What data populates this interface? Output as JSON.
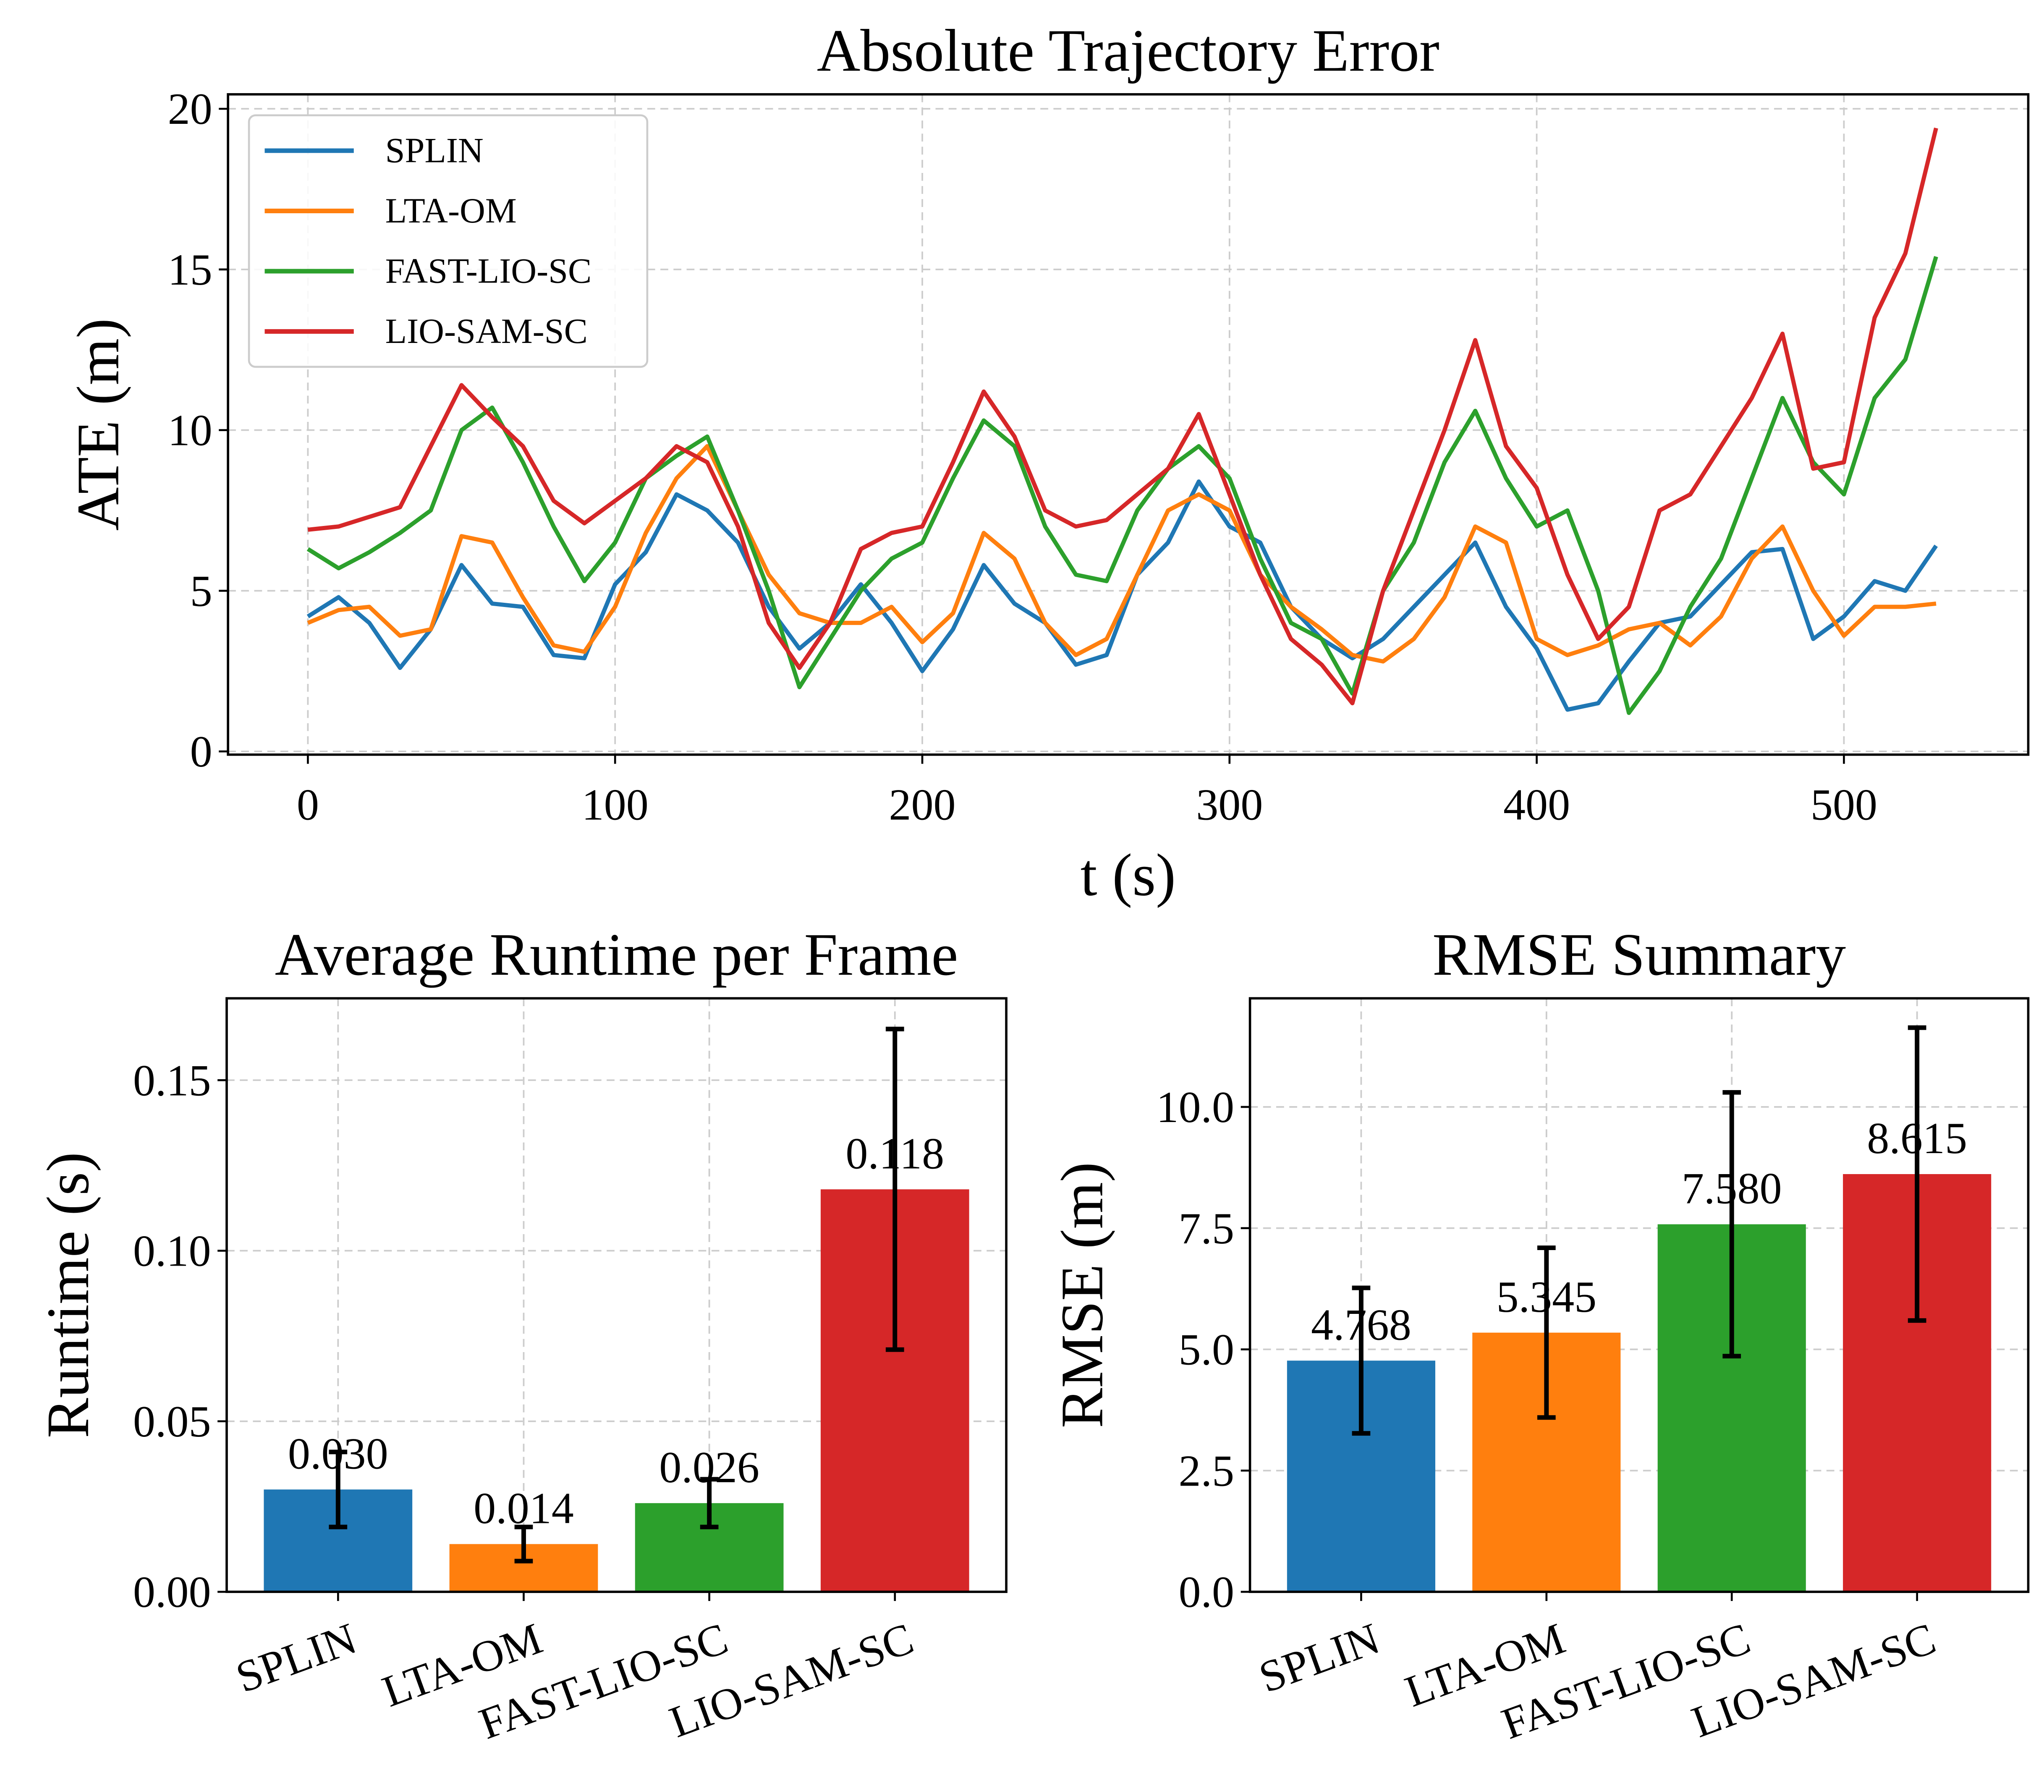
{
  "chart_data": [
    {
      "type": "line",
      "title": "Absolute Trajectory Error",
      "xlabel": "t (s)",
      "ylabel": "ATE (m)",
      "x": [
        0,
        10,
        20,
        30,
        40,
        50,
        60,
        70,
        80,
        90,
        100,
        110,
        120,
        130,
        140,
        150,
        160,
        170,
        180,
        190,
        200,
        210,
        220,
        230,
        240,
        250,
        260,
        270,
        280,
        290,
        300,
        310,
        320,
        330,
        340,
        350,
        360,
        370,
        380,
        390,
        400,
        410,
        420,
        430,
        440,
        450,
        460,
        470,
        480,
        490,
        500,
        510,
        520,
        530
      ],
      "series": [
        {
          "name": "SPLIN",
          "color": "#1f77b4",
          "values": [
            4.2,
            4.8,
            4.0,
            2.6,
            3.8,
            5.8,
            4.6,
            4.5,
            3.0,
            2.9,
            5.2,
            6.2,
            8.0,
            7.5,
            6.5,
            4.5,
            3.2,
            4.0,
            5.2,
            4.0,
            2.5,
            3.8,
            5.8,
            4.6,
            4.0,
            2.7,
            3.0,
            5.5,
            6.5,
            8.4,
            7.0,
            6.5,
            4.5,
            3.5,
            2.9,
            3.5,
            4.5,
            5.5,
            6.5,
            4.5,
            3.2,
            1.3,
            1.5,
            2.8,
            4.0,
            4.2,
            5.2,
            6.2,
            6.3,
            3.5,
            4.2,
            5.3,
            5.0,
            6.4
          ]
        },
        {
          "name": "LTA-OM",
          "color": "#ff7f0e",
          "values": [
            4.0,
            4.4,
            4.5,
            3.6,
            3.8,
            6.7,
            6.5,
            4.8,
            3.3,
            3.1,
            4.5,
            6.8,
            8.5,
            9.5,
            7.5,
            5.5,
            4.3,
            4.0,
            4.0,
            4.5,
            3.4,
            4.3,
            6.8,
            6.0,
            4.0,
            3.0,
            3.5,
            5.5,
            7.5,
            8.0,
            7.5,
            5.5,
            4.5,
            3.8,
            3.0,
            2.8,
            3.5,
            4.8,
            7.0,
            6.5,
            3.5,
            3.0,
            3.3,
            3.8,
            4.0,
            3.3,
            4.2,
            6.0,
            7.0,
            5.0,
            3.6,
            4.5,
            4.5,
            4.6
          ]
        },
        {
          "name": "FAST-LIO-SC",
          "color": "#2ca02c",
          "values": [
            6.3,
            5.7,
            6.2,
            6.8,
            7.5,
            10.0,
            10.7,
            9.0,
            7.0,
            5.3,
            6.5,
            8.5,
            9.2,
            9.8,
            7.5,
            5.0,
            2.0,
            3.5,
            5.0,
            6.0,
            6.5,
            8.5,
            10.3,
            9.5,
            7.0,
            5.5,
            5.3,
            7.5,
            8.8,
            9.5,
            8.5,
            6.0,
            4.0,
            3.5,
            1.8,
            5.0,
            6.5,
            9.0,
            10.6,
            8.5,
            7.0,
            7.5,
            5.0,
            1.2,
            2.5,
            4.5,
            6.0,
            8.5,
            11.0,
            9.0,
            8.0,
            11.0,
            12.2,
            15.4
          ]
        },
        {
          "name": "LIO-SAM-SC",
          "color": "#d62728",
          "values": [
            6.9,
            7.0,
            7.3,
            7.6,
            9.5,
            11.4,
            10.4,
            9.5,
            7.8,
            7.1,
            7.8,
            8.5,
            9.5,
            9.0,
            7.0,
            4.0,
            2.6,
            4.0,
            6.3,
            6.8,
            7.0,
            9.0,
            11.2,
            9.8,
            7.5,
            7.0,
            7.2,
            8.0,
            8.8,
            10.5,
            8.0,
            5.5,
            3.5,
            2.7,
            1.5,
            5.0,
            7.5,
            10.0,
            12.8,
            9.5,
            8.2,
            5.5,
            3.5,
            4.5,
            7.5,
            8.0,
            9.5,
            11.0,
            13.0,
            8.8,
            9.0,
            13.5,
            15.5,
            19.4
          ]
        }
      ],
      "xlim": [
        -26,
        560
      ],
      "ylim": [
        -0.1,
        20.45
      ],
      "xticks": [
        0,
        100,
        200,
        300,
        400,
        500
      ],
      "yticks": [
        0,
        5,
        10,
        15,
        20
      ],
      "grid": true,
      "legend": "upper left"
    },
    {
      "type": "bar",
      "title": "Average Runtime per Frame",
      "ylabel": "Runtime (s)",
      "categories": [
        "SPLIN",
        "LTA-OM",
        "FAST-LIO-SC",
        "LIO-SAM-SC"
      ],
      "values": [
        0.03,
        0.014,
        0.026,
        0.118
      ],
      "value_labels": [
        "0.030",
        "0.014",
        "0.026",
        "0.118"
      ],
      "errors": [
        0.011,
        0.005,
        0.007,
        0.047
      ],
      "colors": [
        "#1f77b4",
        "#ff7f0e",
        "#2ca02c",
        "#d62728"
      ],
      "ylim": [
        0,
        0.174
      ],
      "yticks": [
        {
          "value": 0,
          "label": "0.00"
        },
        0.05,
        {
          "value": 0.1,
          "label": "0.10"
        },
        0.15
      ],
      "grid": true
    },
    {
      "type": "bar",
      "title": "RMSE Summary",
      "ylabel": "RMSE (m)",
      "categories": [
        "SPLIN",
        "LTA-OM",
        "FAST-LIO-SC",
        "LIO-SAM-SC"
      ],
      "values": [
        4.768,
        5.345,
        7.58,
        8.615
      ],
      "value_labels": [
        "4.768",
        "5.345",
        "7.580",
        "8.615"
      ],
      "errors": [
        1.5,
        1.75,
        2.72,
        3.02
      ],
      "colors": [
        "#1f77b4",
        "#ff7f0e",
        "#2ca02c",
        "#d62728"
      ],
      "ylim": [
        0,
        12.24
      ],
      "yticks": [
        {
          "value": 0,
          "label": "0.0"
        },
        2.5,
        {
          "value": 5,
          "label": "5.0"
        },
        7.5,
        {
          "value": 10,
          "label": "10.0"
        }
      ],
      "grid": true
    }
  ]
}
